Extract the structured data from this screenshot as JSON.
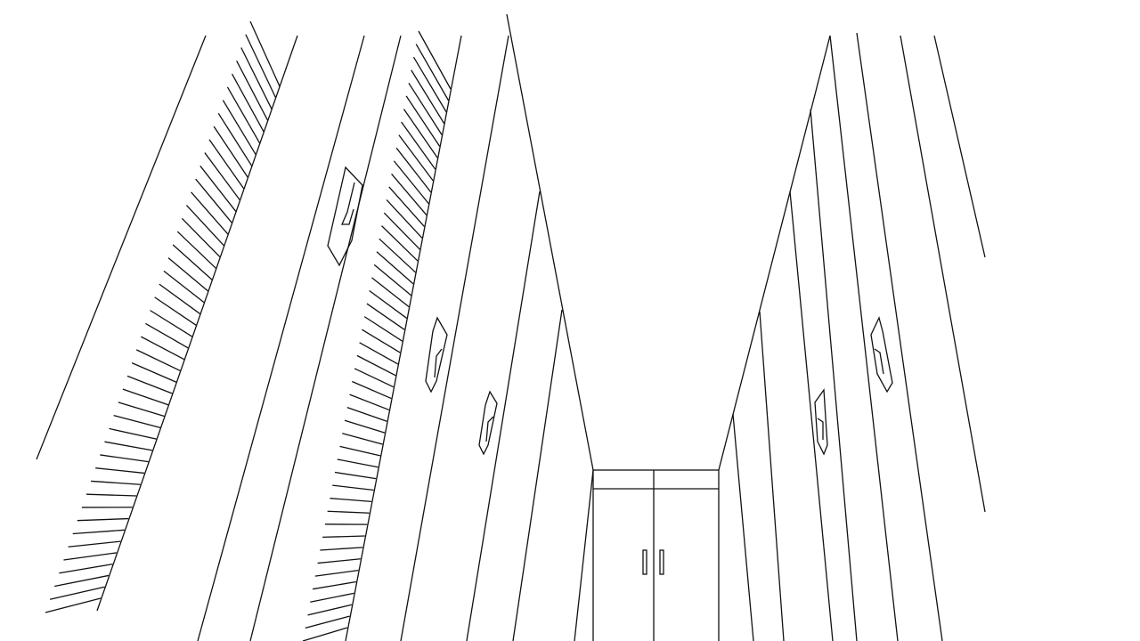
{
  "drawing": {
    "background": "#ffffff",
    "line_color": "#111111"
  }
}
